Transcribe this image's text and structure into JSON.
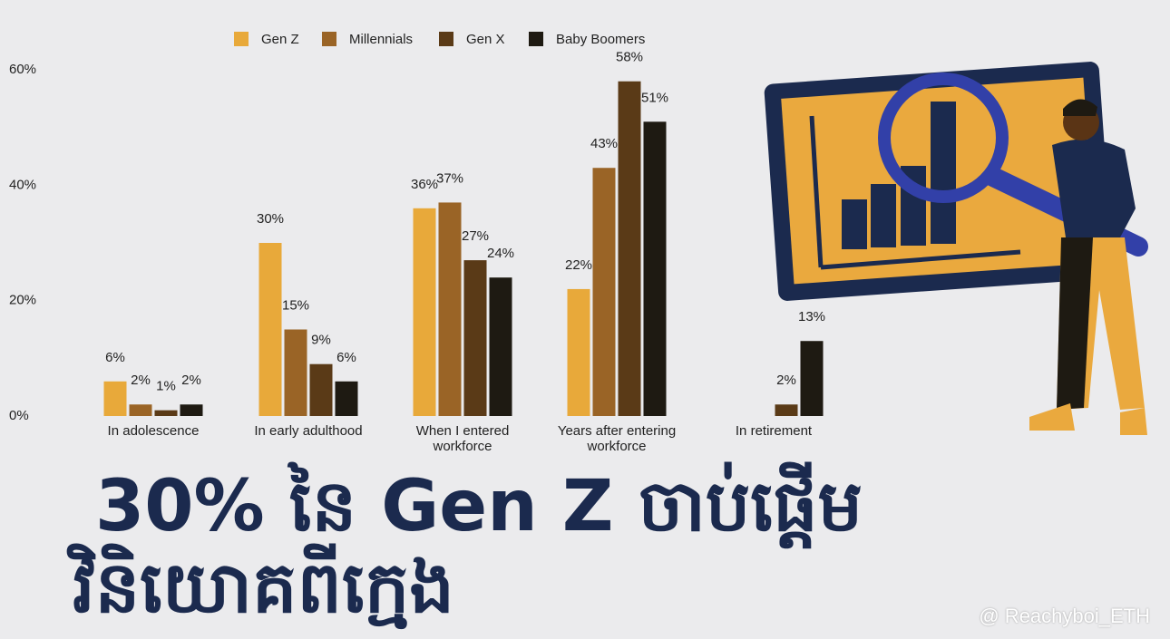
{
  "chart_data": {
    "type": "bar",
    "categories": [
      "In adolescence",
      "In early adulthood",
      "When I entered workforce",
      "Years after entering workforce",
      "In retirement"
    ],
    "series": [
      {
        "name": "Gen Z",
        "color": "#e8a93a",
        "values": [
          6,
          30,
          36,
          22,
          null
        ],
        "value_labels": [
          "6%",
          "30%",
          "36%",
          "22%",
          null
        ]
      },
      {
        "name": "Millennials",
        "color": "#9a6426",
        "values": [
          2,
          15,
          37,
          43,
          null
        ],
        "value_labels": [
          "2%",
          "15%",
          "37%",
          "43%",
          null
        ]
      },
      {
        "name": "Gen X",
        "color": "#5a3a17",
        "values": [
          1,
          9,
          27,
          58,
          2
        ],
        "value_labels": [
          "1%",
          "9%",
          "27%",
          "58%",
          "2%"
        ]
      },
      {
        "name": "Baby Boomers",
        "color": "#1e1a12",
        "values": [
          2,
          6,
          24,
          51,
          13
        ],
        "value_labels": [
          "2%",
          "6%",
          "24%",
          "51%",
          "13%"
        ]
      }
    ],
    "ylim": [
      0,
      60
    ],
    "yticks": [
      {
        "value": 0,
        "label": "0%"
      },
      {
        "value": 20,
        "label": "20%"
      },
      {
        "value": 40,
        "label": "40%"
      },
      {
        "value": 60,
        "label": "60%"
      }
    ],
    "legend": "top"
  },
  "headline": {
    "lines": [
      "30% នៃ Gen Z ចាប់ផ្តើម",
      "វិនិយោគពីក្មេង"
    ]
  },
  "watermark": "@ Reachyboi_ETH"
}
